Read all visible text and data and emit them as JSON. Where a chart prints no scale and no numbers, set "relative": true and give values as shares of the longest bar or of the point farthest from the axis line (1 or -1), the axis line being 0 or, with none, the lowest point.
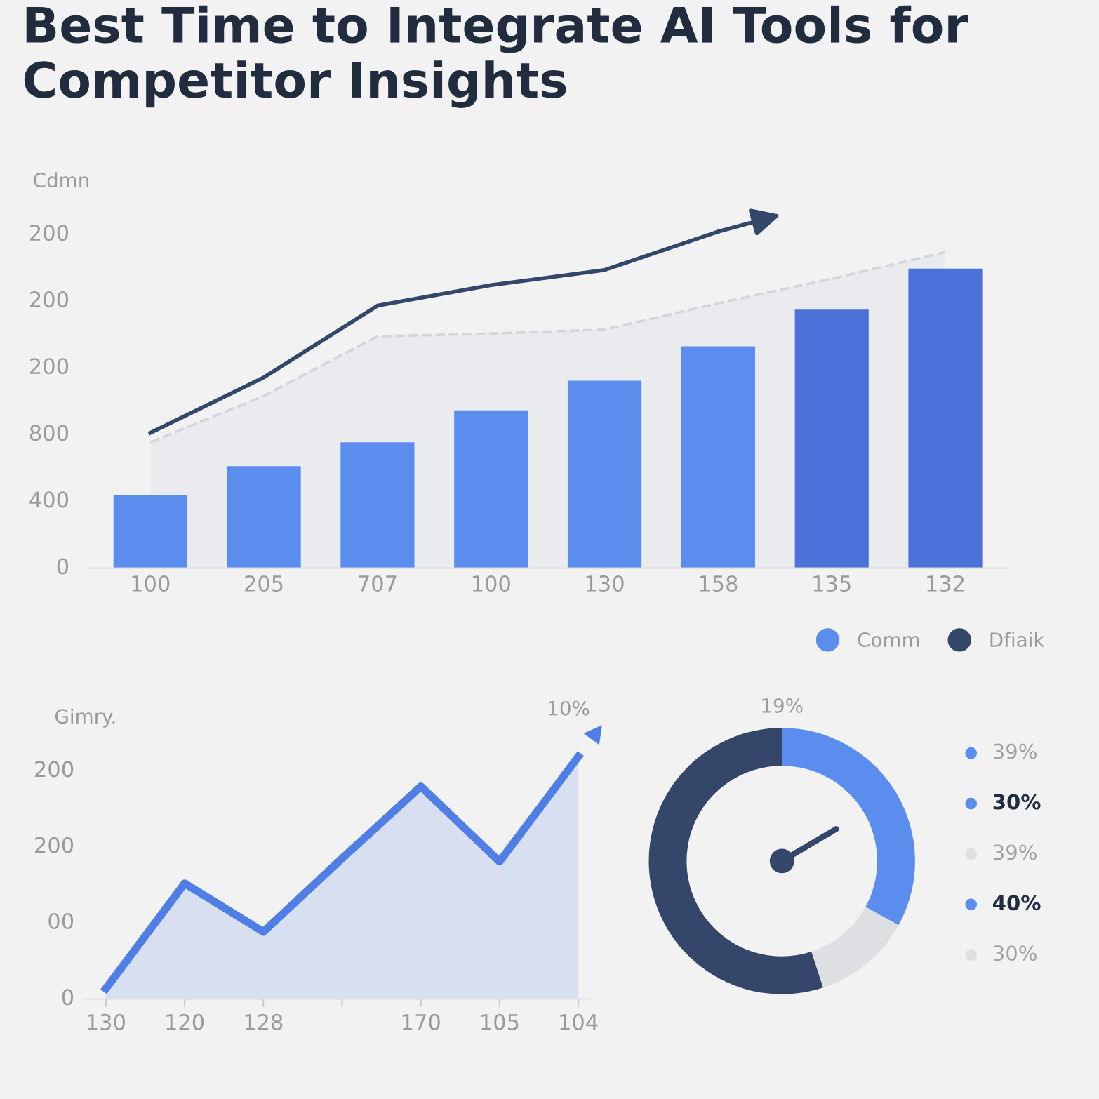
{
  "chart_data": [
    {
      "type": "bar",
      "title": "Best Time to Integrate AI Tools for Competitor Insights",
      "ylabel": "Cdmn",
      "relative": true,
      "categories": [
        "100",
        "205",
        "707",
        "100",
        "130",
        "158",
        "135",
        "132"
      ],
      "annotations": [
        "0",
        "400",
        "800",
        "200",
        "200",
        "200"
      ],
      "series": [
        {
          "type": "area",
          "color": "#e4e6ec",
          "line_style": "dashed",
          "values": [
            0.374,
            0.512,
            0.689,
            0.697,
            0.709,
            0.787,
            0.86,
            0.939
          ]
        },
        {
          "type": "bar",
          "colors": [
            "#5b8def",
            "#5b8def",
            "#5b8def",
            "#5b8def",
            "#5b8def",
            "#5b8def",
            "#4a72d9",
            "#4a72d9"
          ],
          "values": [
            0.217,
            0.303,
            0.374,
            0.469,
            0.557,
            0.659,
            0.768,
            0.89
          ]
        },
        {
          "type": "line",
          "color": "#34476b",
          "values": [
            0.402,
            0.567,
            0.78,
            0.841,
            0.886,
            1.0,
            null,
            null
          ]
        }
      ]
    },
    {
      "type": "area",
      "ylabel": "Gimry.",
      "relative": true,
      "annotations": [
        "0",
        "00",
        "200",
        "200",
        "10%"
      ],
      "categories": [
        "130",
        "120",
        "128",
        null,
        "170",
        "105",
        "104"
      ],
      "series": [
        {
          "color": "#4f7fe6",
          "values": [
            0.043,
            0.477,
            0.277,
            0.58,
            0.877,
            0.567,
            1.0
          ]
        }
      ]
    },
    {
      "type": "donut",
      "categories": [
        "Comm",
        null,
        "Dfiaik"
      ],
      "values": [
        33,
        12,
        55
      ],
      "colors": [
        "#5b8def",
        "#dedfe2",
        "#34476b"
      ],
      "needle": "Comm",
      "legend": "top right",
      "annotations": [
        "19%",
        "39%",
        "30%",
        "39%",
        "40%",
        "30%"
      ]
    }
  ]
}
